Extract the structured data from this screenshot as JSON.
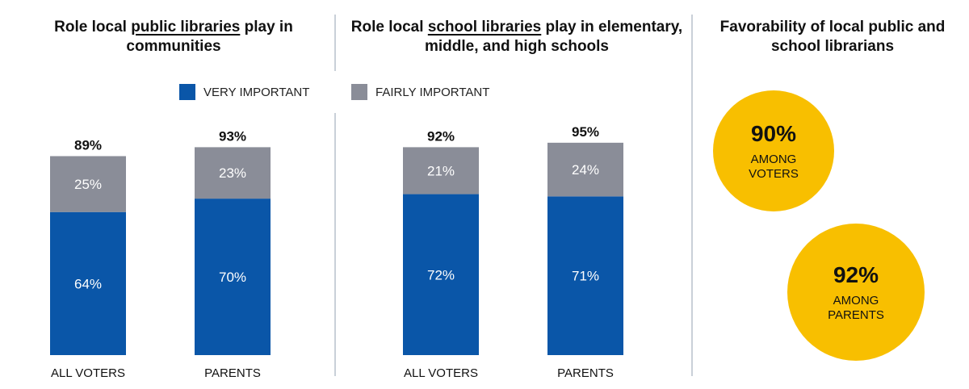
{
  "panels": [
    {
      "title_pre": "Role local ",
      "title_link": "public libraries",
      "title_post": " play in communities"
    },
    {
      "title_pre": "Role local ",
      "title_link": "school libraries",
      "title_post": " play in elementary, middle, and high schools"
    },
    {
      "title": "Favorability of local public and school librarians"
    }
  ],
  "legend": [
    {
      "label": "VERY IMPORTANT",
      "color": "#0a56a8"
    },
    {
      "label": "FAIRLY IMPORTANT",
      "color": "#8a8d98"
    }
  ],
  "chart_data": [
    {
      "type": "bar",
      "stacked": true,
      "categories": [
        "ALL VOTERS",
        "PARENTS"
      ],
      "series": [
        {
          "name": "VERY IMPORTANT",
          "values": [
            64,
            70
          ]
        },
        {
          "name": "FAIRLY IMPORTANT",
          "values": [
            25,
            23
          ]
        }
      ],
      "totals": [
        "89%",
        "93%"
      ],
      "ylim": [
        0,
        100
      ]
    },
    {
      "type": "bar",
      "stacked": true,
      "categories": [
        "ALL VOTERS",
        "PARENTS"
      ],
      "series": [
        {
          "name": "VERY IMPORTANT",
          "values": [
            72,
            71
          ]
        },
        {
          "name": "FAIRLY IMPORTANT",
          "values": [
            21,
            24
          ]
        }
      ],
      "totals": [
        "92%",
        "95%"
      ],
      "ylim": [
        0,
        100
      ]
    }
  ],
  "favorability": {
    "color": "#f8bf00",
    "items": [
      {
        "value": "90%",
        "label": "AMONG\nVOTERS"
      },
      {
        "value": "92%",
        "label": "AMONG\nPARENTS"
      }
    ]
  }
}
